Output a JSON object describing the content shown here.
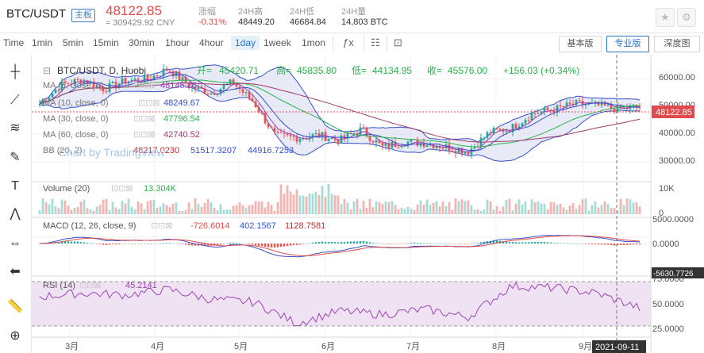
{
  "header": {
    "symbol": "BTC/USDT",
    "badge": "主板",
    "price": "48122.85",
    "price_cny": "≈ 309429.92 CNY",
    "stats": [
      {
        "label": "涨幅",
        "value": "-0.31%",
        "color": "#e04b4b"
      },
      {
        "label": "24H高",
        "value": "48449.20",
        "color": "#333333"
      },
      {
        "label": "24H低",
        "value": "46684.84",
        "color": "#333333"
      },
      {
        "label": "24H量",
        "value": "14,803 BTC",
        "color": "#333333"
      }
    ],
    "star_icon": "star-icon",
    "settings_icon": "gear-icon"
  },
  "toolbar": {
    "timeframes": [
      "Time",
      "1min",
      "5min",
      "15min",
      "30min",
      "1hour",
      "4hour",
      "1day",
      "1week",
      "1mon"
    ],
    "selected": "1day",
    "tools": [
      "indicator-icon",
      "screenshot-icon"
    ],
    "views": [
      "基本版",
      "专业版",
      "深度图"
    ],
    "selected_view": "专业版"
  },
  "left_tools": [
    "crosshair-icon",
    "trend-line-icon",
    "fib-icon",
    "brush-icon",
    "text-icon",
    "pattern-icon",
    "measure-icon",
    "back-arrow-icon",
    "ruler-icon",
    "zoom-in-icon"
  ],
  "main_legend": {
    "title": "BTC/USDT, D, Huobi",
    "ohlc": [
      {
        "label": "开=",
        "value": "45420.71"
      },
      {
        "label": "高=",
        "value": "45835.80"
      },
      {
        "label": "低=",
        "value": "44134.95"
      },
      {
        "label": "收=",
        "value": "45576.00"
      }
    ],
    "change": "+156.03 (+0.34%)",
    "indicators": [
      {
        "name": "MA (5, close, 0)",
        "values": [
          "48145.26"
        ],
        "color": "#9c44b5"
      },
      {
        "name": "MA (10, close, 0)",
        "values": [
          "48249.67"
        ],
        "color": "#3552c9"
      },
      {
        "name": "MA (30, close, 0)",
        "values": [
          "47796.54"
        ],
        "color": "#2bb24c"
      },
      {
        "name": "MA (60, close, 0)",
        "values": [
          "42740.52"
        ],
        "color": "#a23a6c"
      },
      {
        "name": "BB (20, 2)",
        "values": [
          "48217.0230",
          "51517.3207",
          "44916.7253"
        ],
        "color": "#c12c2c"
      }
    ],
    "watermark": "Chart by TradingView"
  },
  "volume_pane": {
    "label": "Volume (20)",
    "value": "13.304K",
    "color": "#2bb24c"
  },
  "macd_pane": {
    "label": "MACD (12, 26, close, 9)",
    "values": [
      "-726.6014",
      "402.1567",
      "1128.7581"
    ],
    "colors": [
      "#e04b4b",
      "#3552c9",
      "#c12c2c"
    ]
  },
  "rsi_pane": {
    "label": "RSI (14)",
    "value": "45.2141",
    "color": "#9c44b5"
  },
  "price_axis": {
    "main": [
      "60000.00",
      "50000.00",
      "40000.00",
      "30000.00"
    ],
    "current_price": "48122.85",
    "volume": [
      "10K",
      "0"
    ],
    "macd": [
      "5000.0000",
      "0.0000",
      "-5630.7726"
    ],
    "rsi": [
      "75.0000",
      "50.0000",
      "25.0000"
    ]
  },
  "time_axis": {
    "labels": [
      "3月",
      "4月",
      "5月",
      "6月",
      "7月",
      "8月",
      "9月"
    ],
    "crosshair_date": "2021-09-11"
  },
  "chart_data": {
    "type": "candlestick",
    "xlabel": "",
    "ylabel": "",
    "ylim": [
      22000,
      66000
    ],
    "grid": true,
    "price_series": {
      "name": "",
      "x": [
        "03-01",
        "03-08",
        "03-15",
        "03-22",
        "03-29",
        "04-05",
        "04-12",
        "04-19",
        "04-26",
        "05-03",
        "05-10",
        "05-17",
        "05-24",
        "05-31",
        "06-07",
        "06-14",
        "06-21",
        "06-28",
        "07-05",
        "07-12",
        "07-19",
        "07-26",
        "08-02",
        "08-09",
        "08-16",
        "08-23",
        "08-30",
        "09-06",
        "09-11"
      ],
      "values": [
        49000,
        56000,
        58000,
        54500,
        57500,
        58000,
        62000,
        55500,
        53000,
        57000,
        49500,
        37000,
        36500,
        37500,
        35500,
        39500,
        33000,
        35000,
        34500,
        33000,
        31500,
        38500,
        40000,
        45500,
        47000,
        49000,
        48500,
        47000,
        48122.85
      ]
    },
    "rsi_series": {
      "name": "",
      "x": [
        "03-01",
        "03-15",
        "03-29",
        "04-12",
        "04-26",
        "05-10",
        "05-24",
        "06-07",
        "06-21",
        "07-05",
        "07-19",
        "08-02",
        "08-16",
        "08-30",
        "09-11"
      ],
      "values": [
        58,
        62,
        60,
        66,
        55,
        52,
        28,
        42,
        38,
        44,
        35,
        70,
        68,
        62,
        45.2
      ]
    }
  }
}
